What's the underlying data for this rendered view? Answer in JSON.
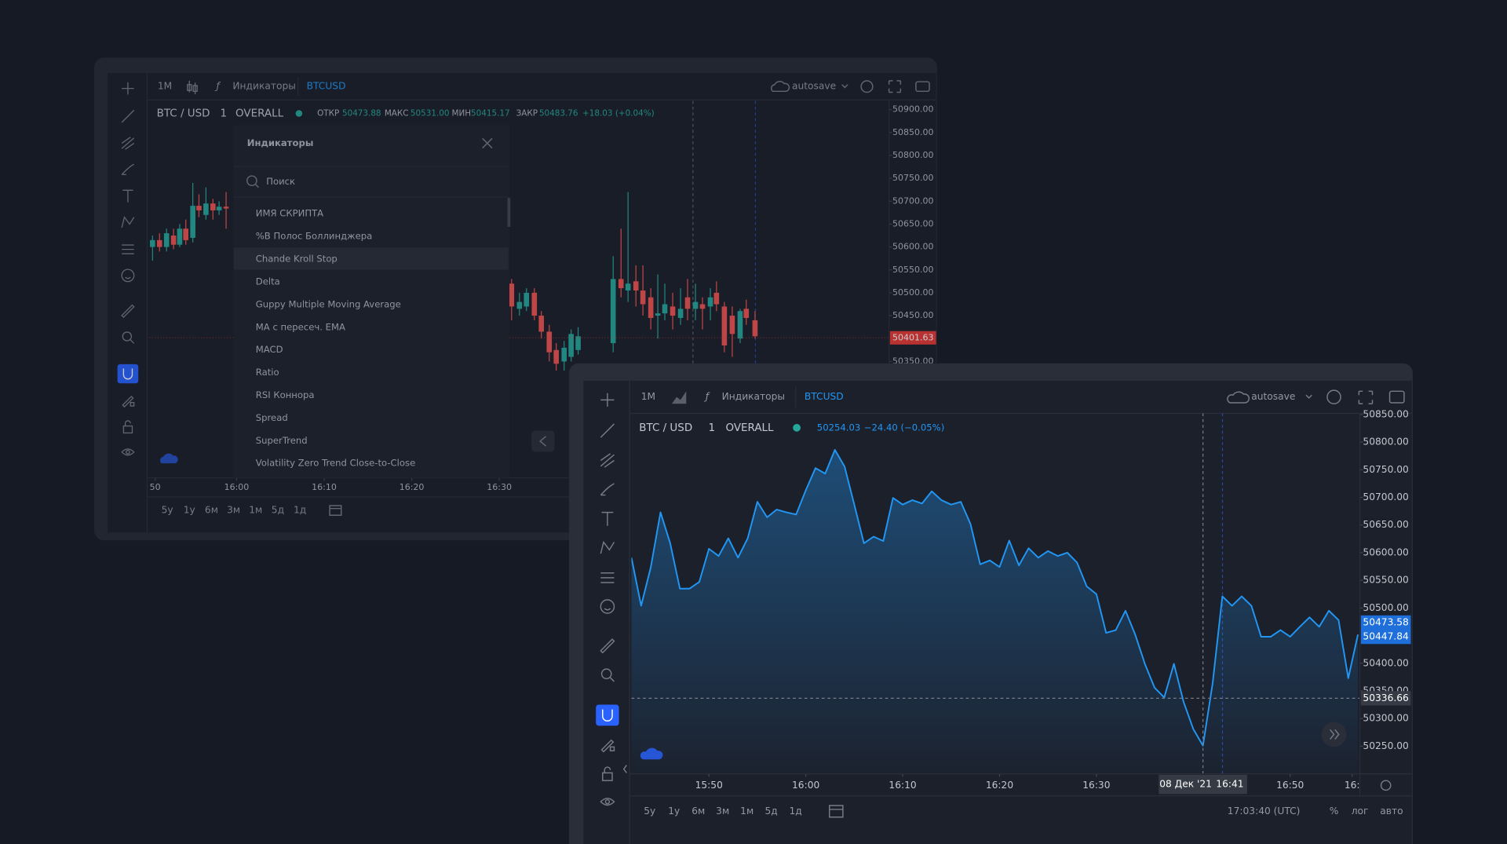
{
  "back_window": {
    "toolbar": {
      "interval": "1M",
      "indicators": "Индикаторы",
      "symbol": "BTCUSD",
      "autosave": "autosave"
    },
    "header": {
      "symbol": "BTC / USD",
      "interval": "1",
      "source": "OVERALL",
      "open_label": "ОТКР",
      "open": "50473.88",
      "high_label": "МАКС",
      "high": "50531.00",
      "low_label": "МИН",
      "low": "50415.17",
      "close_label": "ЗАКР",
      "close": "50483.76",
      "change": "+18.03 (+0.04%)"
    },
    "dialog": {
      "title": "Индикаторы",
      "search_placeholder": "Поиск",
      "section": "ИМЯ СКРИПТА",
      "highlighted_item": 1,
      "items": [
        "%B Полос Боллинджера",
        "Chande Kroll Stop",
        "Delta",
        "Guppy Multiple Moving Average",
        "MA с пересеч. EMA",
        "MACD",
        "Ratio",
        "RSI Коннора",
        "Spread",
        "SuperTrend",
        "Volatility Zero Trend Close-to-Close"
      ]
    },
    "ranges": [
      "5y",
      "1y",
      "6м",
      "3м",
      "1м",
      "5д",
      "1д"
    ]
  },
  "front_window": {
    "toolbar": {
      "interval": "1M",
      "indicators": "Индикаторы",
      "symbol": "BTCUSD",
      "autosave": "autosave"
    },
    "header": {
      "symbol": "BTC / USD",
      "interval": "1",
      "source": "OVERALL",
      "price": "50254.03",
      "change": "−24.40 (−0.05%)"
    },
    "ranges": [
      "5y",
      "1y",
      "6м",
      "3м",
      "1м",
      "5д",
      "1д"
    ],
    "clock": "17:03:40 (UTC)",
    "percent": "%",
    "log": "лог",
    "auto": "авто"
  },
  "chart_data": [
    {
      "type": "candlestick",
      "up_color": "#26a69a",
      "down_color": "#ef5350",
      "x": [
        950.4,
        951.2,
        952.0,
        952.8,
        953.5,
        954.2,
        955.0,
        955.7,
        956.5,
        957.3,
        958.0,
        958.8,
        991.4,
        992.3,
        993.1,
        994.0,
        994.8,
        995.7,
        996.5,
        997.4,
        998.2,
        999.0,
        1003.0,
        1003.9,
        1004.7,
        1005.6,
        1006.4,
        1007.3,
        1008.1,
        1008.9,
        1009.8,
        1010.7,
        1011.5,
        1012.4,
        1013.2,
        1014.1,
        1014.8,
        1015.7,
        1016.6,
        1017.5,
        1018.2,
        1019.2
      ],
      "open": [
        50600,
        50615,
        50600,
        50625,
        50605,
        50640,
        50620,
        50690,
        50670,
        50695,
        50680,
        50688,
        50520,
        50465,
        50470,
        50500,
        50450,
        50415,
        50375,
        50350,
        50360,
        50375,
        50390,
        50530,
        50505,
        50525,
        50505,
        50490,
        50450,
        50455,
        50470,
        50445,
        50490,
        50465,
        50475,
        50470,
        50500,
        50470,
        50450,
        50400,
        50465,
        50440
      ],
      "high": [
        50625,
        50630,
        50640,
        50640,
        50650,
        50660,
        50740,
        50715,
        50730,
        50705,
        50700,
        50720,
        50530,
        50500,
        50510,
        50510,
        50460,
        50430,
        50390,
        50395,
        50420,
        50425,
        50580,
        50640,
        50720,
        50560,
        50560,
        50510,
        50540,
        50520,
        50500,
        50510,
        50530,
        50520,
        50490,
        50510,
        50525,
        50480,
        50470,
        50465,
        50485,
        50460
      ],
      "low": [
        50570,
        50590,
        50590,
        50595,
        50600,
        50605,
        50610,
        50665,
        50660,
        50660,
        50670,
        50640,
        50440,
        50450,
        50460,
        50440,
        50400,
        50350,
        50330,
        50330,
        50350,
        50365,
        50370,
        50490,
        50480,
        50470,
        50450,
        50420,
        50400,
        50440,
        50420,
        50430,
        50440,
        50440,
        50420,
        50440,
        50460,
        50370,
        50360,
        50390,
        50430,
        50400
      ],
      "close": [
        50615,
        50600,
        50630,
        50605,
        50640,
        50615,
        50690,
        50680,
        50695,
        50680,
        50688,
        50684,
        50470,
        50480,
        50500,
        50450,
        50415,
        50370,
        50345,
        50380,
        50410,
        50405,
        50530,
        50510,
        50520,
        50505,
        50475,
        50445,
        50455,
        50475,
        50450,
        50465,
        50465,
        50480,
        50465,
        50490,
        50475,
        50385,
        50410,
        50460,
        50445,
        50405
      ],
      "xlim": [
        950,
        1034.5
      ],
      "xticks": [
        {
          "value": 950.7,
          "label": "50"
        },
        {
          "value": 960,
          "label": "16:00"
        },
        {
          "value": 970,
          "label": "16:10"
        },
        {
          "value": 980,
          "label": "16:20"
        },
        {
          "value": 990,
          "label": "16:30"
        }
      ],
      "ylim": [
        50096,
        50919
      ],
      "yticks": [
        {
          "value": 50900,
          "label": "50900.00"
        },
        {
          "value": 50850,
          "label": "50850.00"
        },
        {
          "value": 50800,
          "label": "50800.00"
        },
        {
          "value": 50750,
          "label": "50750.00"
        },
        {
          "value": 50700,
          "label": "50700.00"
        },
        {
          "value": 50650,
          "label": "50650.00"
        },
        {
          "value": 50600,
          "label": "50600.00"
        },
        {
          "value": 50550,
          "label": "50550.00"
        },
        {
          "value": 50500,
          "label": "50500.00"
        },
        {
          "value": 50450,
          "label": "50450.00"
        },
        {
          "value": 50350,
          "label": "50350.00"
        }
      ],
      "last_price": 50401.63,
      "last_price_color": "#e53935"
    },
    {
      "type": "area",
      "color": "#2196f3",
      "x": [
        942,
        943,
        944,
        945,
        946,
        947,
        948,
        949,
        950,
        951,
        952,
        953,
        954,
        955,
        956,
        957,
        958,
        959,
        960,
        961,
        962,
        963,
        964,
        965,
        966,
        967,
        968,
        969,
        970,
        971,
        972,
        973,
        974,
        975,
        976,
        977,
        978,
        979,
        980,
        981,
        982,
        983,
        984,
        985,
        986,
        987,
        988,
        989,
        990,
        991,
        992,
        993,
        994,
        995,
        996,
        997,
        998,
        999,
        1000,
        1001,
        1002,
        1003,
        1004,
        1005,
        1006,
        1007,
        1008,
        1009,
        1010,
        1011,
        1012,
        1013,
        1014,
        1015,
        1016,
        1017
      ],
      "values": [
        50591,
        50504,
        50574,
        50673,
        50617,
        50535,
        50535,
        50547,
        50607,
        50594,
        50626,
        50591,
        50626,
        50692,
        50664,
        50678,
        50673,
        50669,
        50713,
        50753,
        50743,
        50786,
        50756,
        50687,
        50617,
        50629,
        50621,
        50699,
        50687,
        50695,
        50689,
        50711,
        50695,
        50687,
        50692,
        50652,
        50579,
        50586,
        50574,
        50622,
        50577,
        50608,
        50591,
        50603,
        50594,
        50600,
        50582,
        50539,
        50525,
        50455,
        50460,
        50495,
        50452,
        50399,
        50356,
        50338,
        50399,
        50330,
        50281,
        50251,
        50364,
        50521,
        50504,
        50521,
        50504,
        50448,
        50448,
        50460,
        50448,
        50466,
        50483,
        50466,
        50495,
        50478,
        50373,
        50452
      ],
      "xlim": [
        942,
        1017.2
      ],
      "xticks": [
        {
          "value": 950,
          "label": "15:50"
        },
        {
          "value": 960,
          "label": "16:00"
        },
        {
          "value": 970,
          "label": "16:10"
        },
        {
          "value": 980,
          "label": "16:20"
        },
        {
          "value": 990,
          "label": "16:30"
        },
        {
          "value": 1010,
          "label": "16:50"
        },
        {
          "value": 1016.4,
          "label": "16:"
        }
      ],
      "ylim": [
        50200,
        50852
      ],
      "yticks": [
        {
          "value": 50850,
          "label": "50850.00"
        },
        {
          "value": 50800,
          "label": "50800.00"
        },
        {
          "value": 50750,
          "label": "50750.00"
        },
        {
          "value": 50700,
          "label": "50700.00"
        },
        {
          "value": 50650,
          "label": "50650.00"
        },
        {
          "value": 50600,
          "label": "50600.00"
        },
        {
          "value": 50550,
          "label": "50550.00"
        },
        {
          "value": 50500,
          "label": "50500.00"
        },
        {
          "value": 50400,
          "label": "50400.00"
        },
        {
          "value": 50350,
          "label": "50350.00"
        },
        {
          "value": 50300,
          "label": "50300.00"
        },
        {
          "value": 50250,
          "label": "50250.00"
        }
      ],
      "price_labels": [
        50473.58,
        50447.84
      ],
      "price_label_color": "#1e6fd9",
      "crosshair": {
        "x": 1001,
        "x_label": "16:41",
        "date_label": "08 Дек '21",
        "y": 50336.66
      }
    }
  ]
}
